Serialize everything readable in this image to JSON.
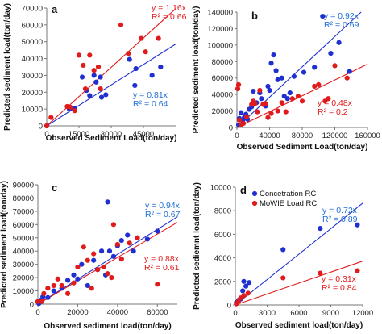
{
  "colors": {
    "concentration": "#1f2fd0",
    "mowie": "#e01b1b",
    "eq_blue": "#1f6fd6",
    "eq_red": "#e01b1b"
  },
  "chart_data": [
    {
      "type": "scatter",
      "panel": "a",
      "xlabel": "Observed Sediment Load(ton/day)",
      "ylabel": "Predicted sediment load(ton/day)",
      "xlim": [
        0,
        60000
      ],
      "ylim": [
        0,
        70000
      ],
      "xticks": [
        0,
        15000,
        30000,
        45000
      ],
      "xtick_labels": [
        "0",
        "15000",
        "30000",
        "45000"
      ],
      "yticks": [
        0,
        10000,
        20000,
        30000,
        40000,
        50000,
        60000,
        70000
      ],
      "ytick_labels": [
        "0",
        "10000",
        "20000",
        "30000",
        "40000",
        "50000",
        "60000",
        "70000"
      ],
      "series": [
        {
          "key": "concentration",
          "slope": 0.81,
          "points": [
            [
              0,
              0
            ],
            [
              10500,
              10000
            ],
            [
              11000,
              11000
            ],
            [
              13000,
              10500
            ],
            [
              16500,
              29000
            ],
            [
              18500,
              21000
            ],
            [
              20000,
              18000
            ],
            [
              22000,
              30000
            ],
            [
              23000,
              26000
            ],
            [
              25000,
              29000
            ],
            [
              25500,
              17000
            ],
            [
              27500,
              18500
            ],
            [
              38500,
              39500
            ],
            [
              41000,
              24000
            ],
            [
              41500,
              34000
            ],
            [
              49000,
              30000
            ],
            [
              53000,
              35000
            ]
          ]
        },
        {
          "key": "mowie",
          "slope": 1.16,
          "points": [
            [
              0,
              0
            ],
            [
              2000,
              5000
            ],
            [
              9500,
              11500
            ],
            [
              11000,
              11000
            ],
            [
              13000,
              9000
            ],
            [
              15000,
              42000
            ],
            [
              17000,
              36000
            ],
            [
              18000,
              22000
            ],
            [
              20000,
              42000
            ],
            [
              22000,
              33000
            ],
            [
              24000,
              35000
            ],
            [
              25000,
              22000
            ],
            [
              34500,
              60000
            ],
            [
              38000,
              43000
            ],
            [
              44000,
              52000
            ],
            [
              46000,
              44000
            ],
            [
              52000,
              52000
            ]
          ]
        }
      ],
      "annotations": [
        {
          "key": "mowie",
          "line1": "y = 1.16x",
          "line2": "R² = 0.66"
        },
        {
          "key": "concentration",
          "line1": "y = 0.81x",
          "line2": "R² = 0.64"
        }
      ]
    },
    {
      "type": "scatter",
      "panel": "b",
      "xlabel": "Observed Sediment Load(ton/day)",
      "ylabel": "Predicted sediment load(ton/day)",
      "xlim": [
        0,
        160000
      ],
      "ylim": [
        0,
        140000
      ],
      "xticks": [
        0,
        40000,
        80000,
        120000,
        160000
      ],
      "xtick_labels": [
        "0",
        "40000",
        "80000",
        "120000",
        "160000"
      ],
      "yticks": [
        0,
        20000,
        40000,
        60000,
        80000,
        100000,
        120000,
        140000
      ],
      "ytick_labels": [
        "0",
        "20000",
        "40000",
        "60000",
        "80000",
        "100000",
        "120000",
        "140000"
      ],
      "series": [
        {
          "key": "concentration",
          "slope": 0.92,
          "points": [
            [
              2000,
              3000
            ],
            [
              3000,
              11000
            ],
            [
              5000,
              18000
            ],
            [
              7000,
              8000
            ],
            [
              9000,
              12000
            ],
            [
              11000,
              16000
            ],
            [
              13000,
              10000
            ],
            [
              15000,
              22000
            ],
            [
              18000,
              25000
            ],
            [
              20000,
              44000
            ],
            [
              24000,
              30000
            ],
            [
              28000,
              42000
            ],
            [
              30000,
              35000
            ],
            [
              35000,
              26000
            ],
            [
              38000,
              50000
            ],
            [
              40000,
              45000
            ],
            [
              42000,
              78000
            ],
            [
              45000,
              88000
            ],
            [
              48000,
              69000
            ],
            [
              50000,
              58000
            ],
            [
              55000,
              60000
            ],
            [
              58000,
              38000
            ],
            [
              62000,
              35000
            ],
            [
              65000,
              42000
            ],
            [
              70000,
              62000
            ],
            [
              82000,
              67000
            ],
            [
              95000,
              73000
            ],
            [
              105000,
              135000
            ],
            [
              115000,
              90000
            ],
            [
              125000,
              103000
            ],
            [
              138000,
              68000
            ]
          ]
        },
        {
          "key": "mowie",
          "slope": 0.48,
          "points": [
            [
              1000,
              47000
            ],
            [
              2000,
              52000
            ],
            [
              3000,
              9000
            ],
            [
              5000,
              3000
            ],
            [
              8000,
              5000
            ],
            [
              12000,
              13000
            ],
            [
              18000,
              28000
            ],
            [
              20000,
              32000
            ],
            [
              22000,
              29000
            ],
            [
              25000,
              19000
            ],
            [
              28000,
              45000
            ],
            [
              32000,
              28000
            ],
            [
              35000,
              29000
            ],
            [
              38000,
              12000
            ],
            [
              42000,
              17000
            ],
            [
              50000,
              20000
            ],
            [
              55000,
              30000
            ],
            [
              60000,
              19000
            ],
            [
              68000,
              35000
            ],
            [
              75000,
              38000
            ],
            [
              80000,
              32000
            ],
            [
              95000,
              50000
            ],
            [
              100000,
              52000
            ],
            [
              108000,
              32000
            ],
            [
              112000,
              35000
            ],
            [
              120000,
              75000
            ],
            [
              135000,
              60000
            ]
          ]
        }
      ],
      "annotations": [
        {
          "key": "concentration",
          "line1": "y = 0.92x",
          "line2": "R² = 0.69"
        },
        {
          "key": "mowie",
          "line1": "y = 0.48x",
          "line2": "R² = 0.2"
        }
      ]
    },
    {
      "type": "scatter",
      "panel": "c",
      "xlabel": "Observed sediment load(ton/day)",
      "ylabel": "Predicted sediment  load(ton/day)",
      "xlim": [
        0,
        70000
      ],
      "ylim": [
        0,
        90000
      ],
      "xticks": [
        0,
        20000,
        40000,
        60000
      ],
      "xtick_labels": [
        "0",
        "20000",
        "40000",
        "60000"
      ],
      "yticks": [
        0,
        10000,
        20000,
        30000,
        40000,
        50000,
        60000,
        70000,
        80000,
        90000
      ],
      "ytick_labels": [
        "0",
        "10000",
        "20000",
        "30000",
        "40000",
        "50000",
        "60000",
        "70000",
        "80000",
        "90000"
      ],
      "series": [
        {
          "key": "concentration",
          "slope": 0.94,
          "points": [
            [
              500,
              500
            ],
            [
              1500,
              3000
            ],
            [
              2500,
              5500
            ],
            [
              5000,
              5000
            ],
            [
              8000,
              10000
            ],
            [
              12000,
              12000
            ],
            [
              15000,
              18000
            ],
            [
              18000,
              22000
            ],
            [
              20000,
              19000
            ],
            [
              22000,
              30000
            ],
            [
              25000,
              14000
            ],
            [
              28000,
              33000
            ],
            [
              30000,
              26000
            ],
            [
              32000,
              40000
            ],
            [
              34000,
              22000
            ],
            [
              35000,
              77000
            ],
            [
              36000,
              40000
            ],
            [
              38000,
              36000
            ],
            [
              40000,
              44000
            ],
            [
              42000,
              48000
            ],
            [
              45000,
              52000
            ],
            [
              48000,
              40000
            ],
            [
              55000,
              49000
            ],
            [
              60000,
              55000
            ]
          ]
        },
        {
          "key": "mowie",
          "slope": 0.88,
          "points": [
            [
              0,
              2000
            ],
            [
              2000,
              2000
            ],
            [
              3000,
              8000
            ],
            [
              5000,
              12000
            ],
            [
              8000,
              14000
            ],
            [
              10000,
              19000
            ],
            [
              12000,
              14000
            ],
            [
              15000,
              8000
            ],
            [
              18000,
              16000
            ],
            [
              20000,
              28000
            ],
            [
              23000,
              43000
            ],
            [
              25000,
              33000
            ],
            [
              27000,
              12000
            ],
            [
              28000,
              38000
            ],
            [
              30000,
              26000
            ],
            [
              33000,
              28000
            ],
            [
              35000,
              23000
            ],
            [
              37000,
              20000
            ],
            [
              38000,
              60000
            ],
            [
              40000,
              45000
            ],
            [
              42000,
              34000
            ],
            [
              46000,
              46000
            ],
            [
              50000,
              50000
            ],
            [
              60000,
              15000
            ]
          ]
        }
      ],
      "annotations": [
        {
          "key": "concentration",
          "line1": "y = 0.94x",
          "line2": "R² = 0.67"
        },
        {
          "key": "mowie",
          "line1": "y = 0.88x",
          "line2": "R² = 0.61"
        }
      ]
    },
    {
      "type": "scatter",
      "panel": "d",
      "xlabel": "Observed sediment load(ton/day)",
      "ylabel": "Predicted sediemnt load(ton/day)",
      "xlim": [
        0,
        12000
      ],
      "ylim": [
        0,
        10000
      ],
      "xticks": [
        0,
        3000,
        6000,
        9000,
        12000
      ],
      "xtick_labels": [
        "0",
        "3000",
        "6000",
        "9000",
        "12000"
      ],
      "yticks": [
        0,
        2000,
        4000,
        6000,
        8000,
        10000
      ],
      "ytick_labels": [
        "0",
        "2000",
        "4000",
        "6000",
        "8000",
        "10000"
      ],
      "legend": {
        "position": "top-left",
        "entries": [
          {
            "key": "concentration",
            "label": "Concetration RC"
          },
          {
            "key": "mowie",
            "label": "MoWIE Load RC"
          }
        ]
      },
      "series": [
        {
          "key": "concentration",
          "slope": 0.72,
          "points": [
            [
              100,
              200
            ],
            [
              300,
              400
            ],
            [
              500,
              500
            ],
            [
              700,
              1200
            ],
            [
              800,
              2000
            ],
            [
              1000,
              1600
            ],
            [
              1300,
              1900
            ],
            [
              4500,
              4700
            ],
            [
              8000,
              6500
            ],
            [
              11500,
              6800
            ]
          ]
        },
        {
          "key": "mowie",
          "slope": 0.31,
          "points": [
            [
              100,
              100
            ],
            [
              300,
              300
            ],
            [
              500,
              600
            ],
            [
              800,
              800
            ],
            [
              1200,
              1000
            ],
            [
              4500,
              2300
            ],
            [
              8000,
              2700
            ],
            [
              11500,
              2900
            ]
          ]
        }
      ],
      "annotations": [
        {
          "key": "concentration",
          "line1": "y = 0.72x",
          "line2": "R² = 0.89"
        },
        {
          "key": "mowie",
          "line1": "y = 0.31x",
          "line2": "R² = 0.84"
        }
      ]
    }
  ]
}
